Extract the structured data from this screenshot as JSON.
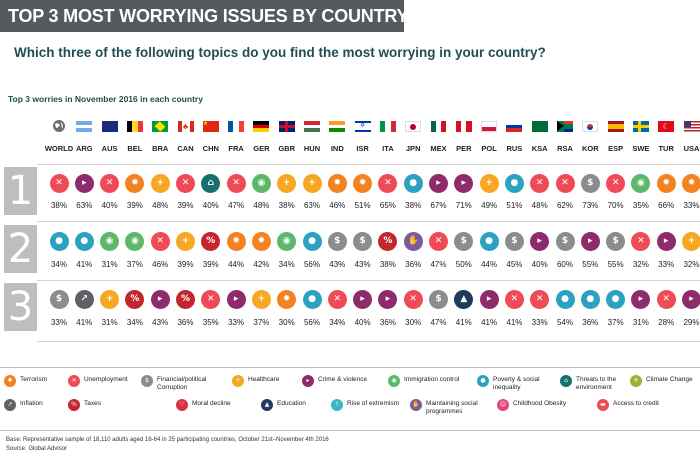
{
  "header": {
    "title": "TOP 3 MOST WORRYING ISSUES BY COUNTRY",
    "question": "Which three of the following topics do you find the most worrying in your country?",
    "subtitle": "Top 3 worries in November 2016 in each country"
  },
  "issues": {
    "terrorism": {
      "label": "Terrorism",
      "color": "#f58220",
      "icon": "bomb-icon"
    },
    "unemployment": {
      "label": "Unemployment",
      "color": "#ef4b57",
      "icon": "briefcase-icon"
    },
    "financial": {
      "label": "Financial/political Corruption",
      "color": "#8b8c8e",
      "icon": "money-hand-icon"
    },
    "healthcare": {
      "label": "Healthcare",
      "color": "#f7a823",
      "icon": "ambulance-icon"
    },
    "crime": {
      "label": "Crime & violence",
      "color": "#8e2b6d",
      "icon": "gun-icon"
    },
    "immigration": {
      "label": "Immigration control",
      "color": "#5db86b",
      "icon": "person-icon"
    },
    "poverty": {
      "label": "Poverty & social inequality",
      "color": "#2aa2c0",
      "icon": "person-poverty-icon"
    },
    "environment": {
      "label": "Threats to the environment",
      "color": "#18706e",
      "icon": "factory-icon"
    },
    "climate": {
      "label": "Climate Change",
      "color": "#9bb234",
      "icon": "thermometer-icon"
    },
    "inflation": {
      "label": "Inflation",
      "color": "#5e6166",
      "icon": "chart-up-icon"
    },
    "taxes": {
      "label": "Taxes",
      "color": "#c4262e",
      "icon": "tax-money-icon"
    },
    "moral": {
      "label": "Moral decline",
      "color": "#d9333f",
      "icon": "moral-icon"
    },
    "education": {
      "label": "Education",
      "color": "#1f3b5a",
      "icon": "mortarboard-icon"
    },
    "extremism": {
      "label": "Rise of extremism",
      "color": "#3bb8c4",
      "icon": "extremism-icon"
    },
    "social": {
      "label": "Maintaining social programmes",
      "color": "#7a5aa0",
      "icon": "social-hand-icon"
    },
    "obesity": {
      "label": "Childhood Obesity",
      "color": "#e7467d",
      "icon": "child-obesity-icon"
    },
    "credit": {
      "label": "Access to credit",
      "color": "#ef4b57",
      "icon": "credit-icon"
    }
  },
  "legend": {
    "items": [
      "terrorism",
      "unemployment",
      "financial",
      "healthcare",
      "crime",
      "immigration",
      "poverty",
      "environment",
      "climate",
      "inflation",
      "taxes",
      "moral",
      "education",
      "extremism",
      "social",
      "obesity",
      "credit"
    ]
  },
  "ranks": [
    "1",
    "2",
    "3"
  ],
  "countries": [
    {
      "code": "WORLD",
      "flag": "globe-icon"
    },
    {
      "code": "ARG",
      "flag": "flag-arg"
    },
    {
      "code": "AUS",
      "flag": "flag-aus"
    },
    {
      "code": "BEL",
      "flag": "flag-bel"
    },
    {
      "code": "BRA",
      "flag": "flag-bra"
    },
    {
      "code": "CAN",
      "flag": "flag-can"
    },
    {
      "code": "CHN",
      "flag": "flag-chn"
    },
    {
      "code": "FRA",
      "flag": "flag-fra"
    },
    {
      "code": "GER",
      "flag": "flag-ger"
    },
    {
      "code": "GBR",
      "flag": "flag-gbr"
    },
    {
      "code": "HUN",
      "flag": "flag-hun"
    },
    {
      "code": "IND",
      "flag": "flag-ind"
    },
    {
      "code": "ISR",
      "flag": "flag-isr"
    },
    {
      "code": "ITA",
      "flag": "flag-ita"
    },
    {
      "code": "JPN",
      "flag": "flag-jpn"
    },
    {
      "code": "MEX",
      "flag": "flag-mex"
    },
    {
      "code": "PER",
      "flag": "flag-per"
    },
    {
      "code": "POL",
      "flag": "flag-pol"
    },
    {
      "code": "RUS",
      "flag": "flag-rus"
    },
    {
      "code": "KSA",
      "flag": "flag-ksa"
    },
    {
      "code": "RSA",
      "flag": "flag-rsa"
    },
    {
      "code": "KOR",
      "flag": "flag-kor"
    },
    {
      "code": "ESP",
      "flag": "flag-esp"
    },
    {
      "code": "SWE",
      "flag": "flag-swe"
    },
    {
      "code": "TUR",
      "flag": "flag-tur"
    },
    {
      "code": "USA",
      "flag": "flag-usa"
    }
  ],
  "chart_data": {
    "type": "table",
    "title": "TOP 3 MOST WORRYING ISSUES BY COUNTRY",
    "subtitle": "Top 3 worries in November 2016 in each country",
    "categories": [
      "WORLD",
      "ARG",
      "AUS",
      "BEL",
      "BRA",
      "CAN",
      "CHN",
      "FRA",
      "GER",
      "GBR",
      "HUN",
      "IND",
      "ISR",
      "ITA",
      "JPN",
      "MEX",
      "PER",
      "POL",
      "RUS",
      "KSA",
      "RSA",
      "KOR",
      "ESP",
      "SWE",
      "TUR",
      "USA"
    ],
    "series": [
      {
        "name": "1",
        "issues": [
          "unemployment",
          "crime",
          "unemployment",
          "terrorism",
          "healthcare",
          "unemployment",
          "environment",
          "unemployment",
          "immigration",
          "healthcare",
          "healthcare",
          "terrorism",
          "terrorism",
          "unemployment",
          "poverty",
          "crime",
          "crime",
          "healthcare",
          "poverty",
          "unemployment",
          "unemployment",
          "financial",
          "unemployment",
          "immigration",
          "terrorism",
          "terrorism"
        ],
        "values": [
          38,
          63,
          40,
          39,
          48,
          39,
          40,
          47,
          48,
          38,
          63,
          46,
          51,
          65,
          38,
          67,
          71,
          49,
          51,
          48,
          62,
          73,
          70,
          35,
          66,
          33
        ]
      },
      {
        "name": "2",
        "issues": [
          "poverty",
          "poverty",
          "immigration",
          "immigration",
          "unemployment",
          "healthcare",
          "taxes",
          "terrorism",
          "terrorism",
          "immigration",
          "poverty",
          "financial",
          "financial",
          "taxes",
          "social",
          "unemployment",
          "financial",
          "poverty",
          "financial",
          "crime",
          "financial",
          "crime",
          "financial",
          "unemployment",
          "crime",
          "healthcare"
        ],
        "values": [
          34,
          41,
          31,
          37,
          46,
          39,
          39,
          44,
          42,
          34,
          56,
          43,
          43,
          38,
          36,
          47,
          50,
          44,
          45,
          40,
          60,
          55,
          55,
          32,
          33,
          32
        ]
      },
      {
        "name": "3",
        "issues": [
          "financial",
          "inflation",
          "healthcare",
          "taxes",
          "crime",
          "taxes",
          "unemployment",
          "crime",
          "healthcare",
          "terrorism",
          "poverty",
          "unemployment",
          "crime",
          "crime",
          "unemployment",
          "financial",
          "education",
          "crime",
          "unemployment",
          "unemployment",
          "poverty",
          "poverty",
          "poverty",
          "crime",
          "unemployment",
          "crime"
        ],
        "values": [
          33,
          41,
          31,
          34,
          43,
          36,
          35,
          33,
          37,
          30,
          56,
          34,
          40,
          36,
          30,
          47,
          41,
          41,
          41,
          33,
          54,
          36,
          37,
          31,
          28,
          29
        ]
      }
    ]
  },
  "footer": {
    "base": "Base: Representative sample of 18,110 adults aged 16-64 in 25 participating countries, October 21st–November 4th 2016",
    "source": "Source: Global Advisor"
  }
}
